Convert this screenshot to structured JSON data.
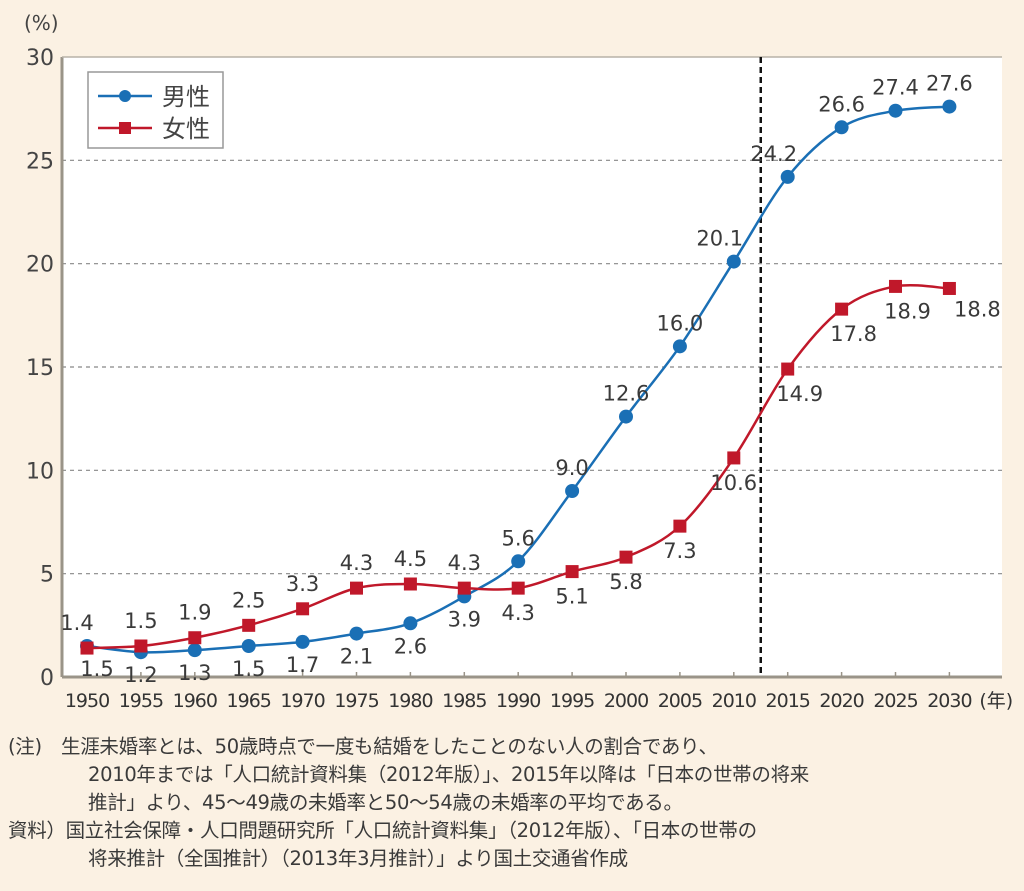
{
  "chart_data": {
    "type": "line",
    "ylabel": "(%)",
    "xlabel_unit": "(年)",
    "ylim": [
      0,
      30
    ],
    "yticks": [
      0,
      5,
      10,
      15,
      20,
      25,
      30
    ],
    "grid": "horizontal dashed",
    "legend_placement": "top-left",
    "projection_divider_between": [
      2010,
      2015
    ],
    "x": [
      1950,
      1955,
      1960,
      1965,
      1970,
      1975,
      1980,
      1985,
      1990,
      1995,
      2000,
      2005,
      2010,
      2015,
      2020,
      2025,
      2030
    ],
    "series": [
      {
        "name": "男性",
        "color": "#1a6fb5",
        "marker": "circle",
        "values": [
          1.5,
          1.2,
          1.3,
          1.5,
          1.7,
          2.1,
          2.6,
          3.9,
          5.6,
          9.0,
          12.6,
          16.0,
          20.1,
          24.2,
          26.6,
          27.4,
          27.6
        ],
        "labels": [
          "1.5",
          "1.2",
          "1.3",
          "1.5",
          "1.7",
          "2.1",
          "2.6",
          "3.9",
          "5.6",
          "9.0",
          "12.6",
          "16.0",
          "20.1",
          "24.2",
          "26.6",
          "27.4",
          "27.6"
        ]
      },
      {
        "name": "女性",
        "color": "#c0182a",
        "marker": "square",
        "values": [
          1.4,
          1.5,
          1.9,
          2.5,
          3.3,
          4.3,
          4.5,
          4.3,
          4.3,
          5.1,
          5.8,
          7.3,
          10.6,
          14.9,
          17.8,
          18.9,
          18.8
        ],
        "labels": [
          "1.4",
          "1.5",
          "1.9",
          "2.5",
          "3.3",
          "4.3",
          "4.5",
          "4.3",
          "4.3",
          "5.1",
          "5.8",
          "7.3",
          "10.6",
          "14.9",
          "17.8",
          "18.9",
          "18.8"
        ]
      }
    ]
  },
  "notes": {
    "note_line1": "(注)　生涯未婚率とは、50歳時点で一度も結婚をしたことのない人の割合であり、",
    "note_line2": "2010年までは「人口統計資料集（2012年版）」、2015年以降は「日本の世帯の将来",
    "note_line3": "推計」より、45～49歳の未婚率と50～54歳の未婚率の平均である。",
    "source_line1": "資料）国立社会保障・人口問題研究所「人口統計資料集」（2012年版）、「日本の世帯の",
    "source_line2": "将来推計（全国推計）（2013年3月推計）」より国土交通省作成"
  }
}
